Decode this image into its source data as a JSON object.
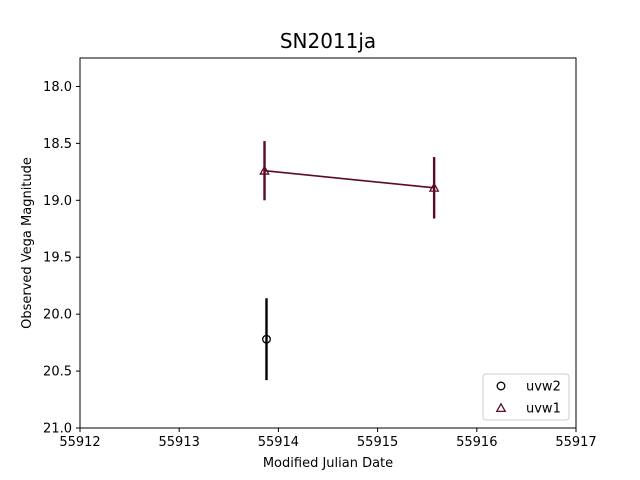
{
  "chart_data": {
    "type": "scatter",
    "title": "SN2011ja",
    "xlabel": "Modified Julian Date",
    "ylabel": "Observed Vega Magnitude",
    "xlim": [
      55912,
      55917
    ],
    "ylim": [
      17.75,
      21.0
    ],
    "y_inverted": true,
    "x_ticks": [
      55912,
      55913,
      55914,
      55915,
      55916,
      55917
    ],
    "y_ticks": [
      18.0,
      18.5,
      19.0,
      19.5,
      20.0,
      20.5,
      21.0
    ],
    "grid": false,
    "legend_position": "bottom-right",
    "series": [
      {
        "name": "uvw2",
        "marker": "circle",
        "color": "#000000",
        "connect": false,
        "points": [
          {
            "x": 55913.88,
            "y": 20.22,
            "err": 0.36
          }
        ]
      },
      {
        "name": "uvw1",
        "marker": "triangle",
        "color": "#5c0a26",
        "connect": true,
        "points": [
          {
            "x": 55913.86,
            "y": 18.74,
            "err": 0.26
          },
          {
            "x": 55915.57,
            "y": 18.89,
            "err": 0.27
          }
        ]
      }
    ]
  }
}
